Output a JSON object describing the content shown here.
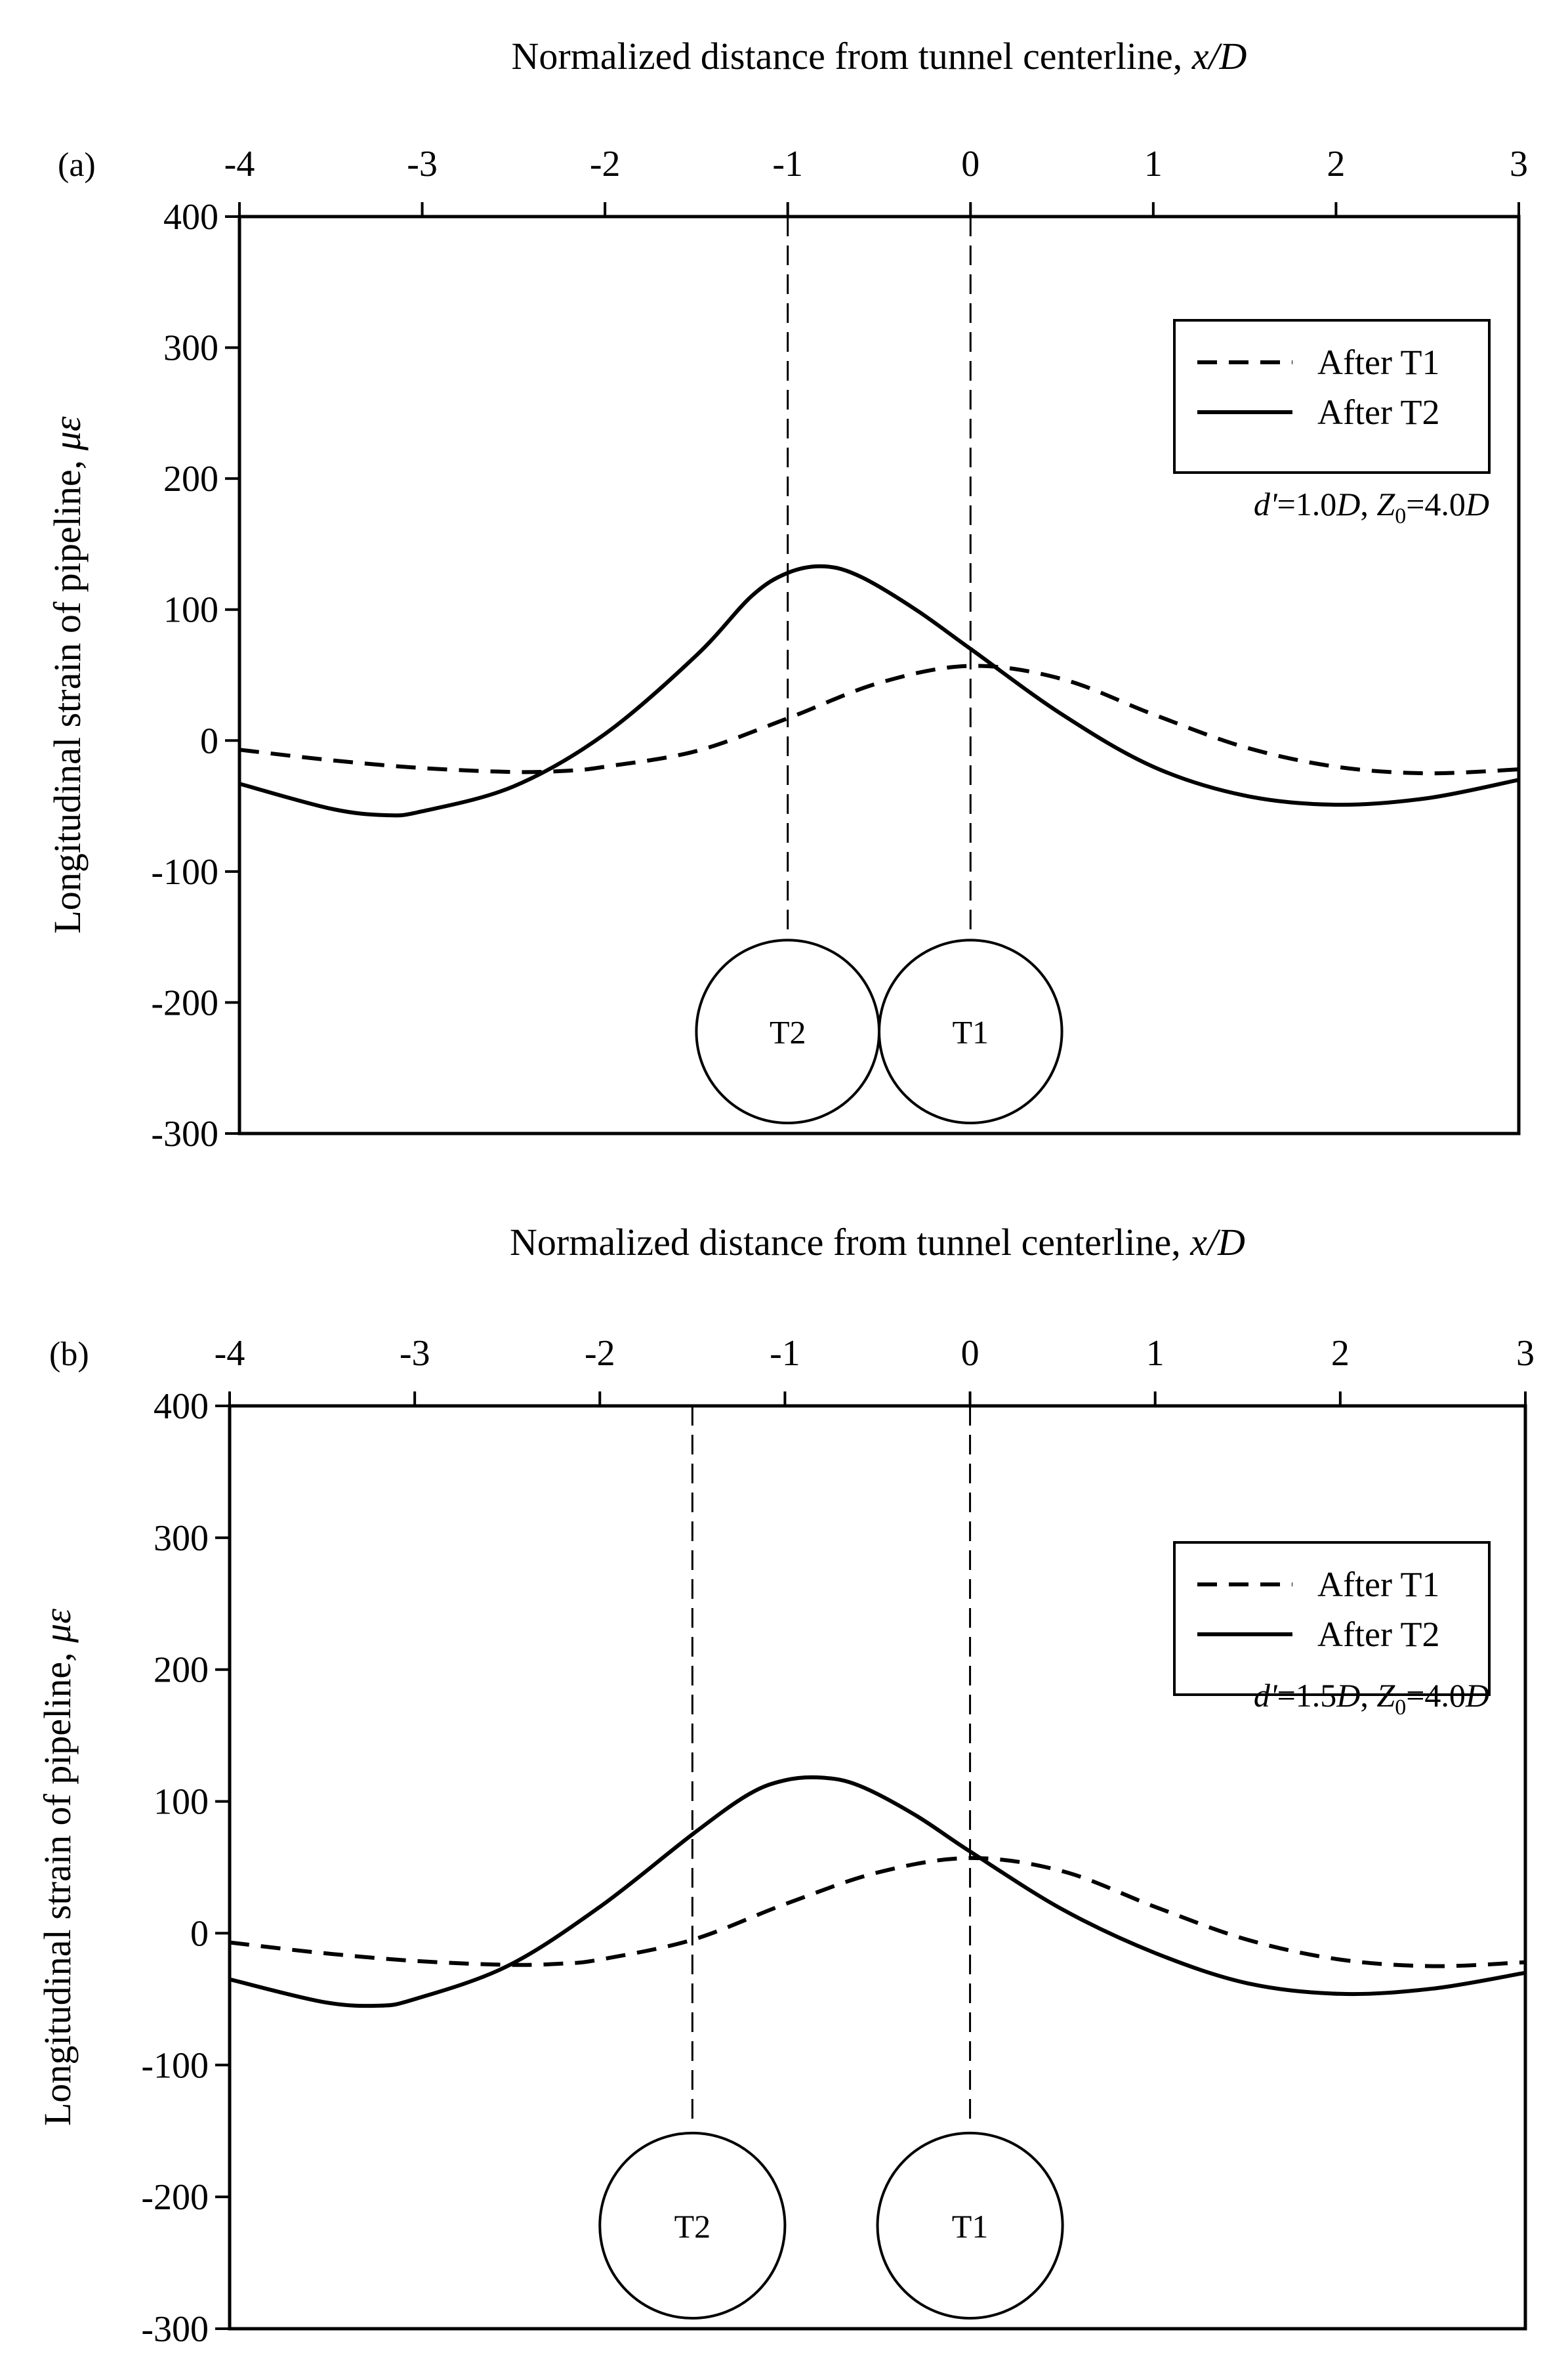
{
  "chart_data": [
    {
      "type": "line",
      "panel_label": "(a)",
      "xlabel_prefix": "Normalized distance from tunnel centerline, ",
      "xlabel_var": "x/D",
      "ylabel_prefix": "Longitudinal strain of pipeline, ",
      "ylabel_var": "με",
      "xlim": [
        -4,
        3
      ],
      "ylim": [
        -300,
        400
      ],
      "xticks": [
        "-4",
        "-3",
        "-2",
        "-1",
        "0",
        "1",
        "2",
        "3"
      ],
      "yticks": [
        "400",
        "300",
        "200",
        "100",
        "0",
        "-100",
        "-200",
        "-300"
      ],
      "legend": {
        "position": "upper-right",
        "entries": [
          "After T1",
          "After T2"
        ]
      },
      "note": {
        "d_label": "d'",
        "d_value": "=1.0",
        "d_unit": "D",
        "z_label": "Z",
        "z_sub": "0",
        "z_value": "=4.0",
        "z_unit": "D"
      },
      "tunnels": [
        {
          "label": "T2",
          "x": -1.0
        },
        {
          "label": "T1",
          "x": 0.0
        }
      ],
      "series": [
        {
          "name": "After T1",
          "style": "dashed",
          "x": [
            -4,
            -3.5,
            -3,
            -2.5,
            -2.2,
            -2,
            -1.5,
            -1,
            -0.5,
            0,
            0.5,
            1,
            1.5,
            2,
            2.5,
            3
          ],
          "y": [
            -7,
            -15,
            -21,
            -24,
            -23,
            -20,
            -8,
            17,
            44,
            57,
            47,
            20,
            -5,
            -20,
            -25,
            -22
          ]
        },
        {
          "name": "After T2",
          "style": "solid",
          "x": [
            -4,
            -3.5,
            -3.2,
            -3,
            -2.5,
            -2,
            -1.5,
            -1.2,
            -1,
            -0.8,
            -0.6,
            -0.3,
            0,
            0.5,
            1,
            1.5,
            2,
            2.5,
            3
          ],
          "y": [
            -33,
            -52,
            -57,
            -54,
            -35,
            5,
            65,
            110,
            128,
            133,
            125,
            100,
            70,
            20,
            -20,
            -42,
            -49,
            -44,
            -30
          ]
        }
      ]
    },
    {
      "type": "line",
      "panel_label": "(b)",
      "xlabel_prefix": "Normalized distance from tunnel centerline, ",
      "xlabel_var": "x/D",
      "ylabel_prefix": "Longitudinal strain of pipeline, ",
      "ylabel_var": "με",
      "xlim": [
        -4,
        3
      ],
      "ylim": [
        -300,
        400
      ],
      "xticks": [
        "-4",
        "-3",
        "-2",
        "-1",
        "0",
        "1",
        "2",
        "3"
      ],
      "yticks": [
        "400",
        "300",
        "200",
        "100",
        "0",
        "-100",
        "-200",
        "-300"
      ],
      "legend": {
        "position": "upper-right",
        "entries": [
          "After T1",
          "After T2"
        ]
      },
      "note": {
        "d_label": "d'",
        "d_value": "=1.5",
        "d_unit": "D",
        "z_label": "Z",
        "z_sub": "0",
        "z_value": "=4.0",
        "z_unit": "D"
      },
      "tunnels": [
        {
          "label": "T2",
          "x": -1.5
        },
        {
          "label": "T1",
          "x": 0.0
        }
      ],
      "series": [
        {
          "name": "After T1",
          "style": "dashed",
          "x": [
            -4,
            -3.5,
            -3,
            -2.5,
            -2.2,
            -2,
            -1.5,
            -1,
            -0.5,
            0,
            0.5,
            1,
            1.5,
            2,
            2.5,
            3
          ],
          "y": [
            -7,
            -15,
            -21,
            -24,
            -23,
            -20,
            -5,
            22,
            46,
            57,
            47,
            20,
            -5,
            -20,
            -25,
            -22
          ]
        },
        {
          "name": "After T2",
          "style": "solid",
          "x": [
            -4,
            -3.5,
            -3.2,
            -3,
            -2.5,
            -2,
            -1.5,
            -1.2,
            -1,
            -0.8,
            -0.6,
            -0.3,
            0,
            0.5,
            1,
            1.5,
            2,
            2.5,
            3
          ],
          "y": [
            -35,
            -52,
            -55,
            -50,
            -25,
            20,
            75,
            105,
            116,
            118,
            112,
            90,
            62,
            18,
            -15,
            -38,
            -46,
            -42,
            -30
          ]
        }
      ]
    }
  ]
}
